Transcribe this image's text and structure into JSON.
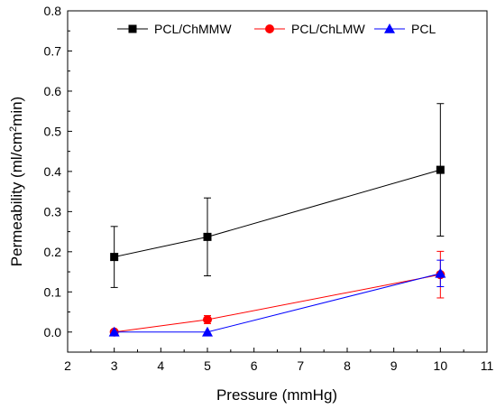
{
  "chart_data": {
    "type": "line",
    "xlabel": "Pressure (mmHg)",
    "ylabel_parts": [
      "Permeability (ml/cm",
      "2",
      "min)"
    ],
    "xlim": [
      2,
      11
    ],
    "ylim": [
      -0.05,
      0.8
    ],
    "x_ticks": [
      2,
      3,
      4,
      5,
      6,
      7,
      8,
      9,
      10,
      11
    ],
    "y_ticks": [
      "0.0",
      "0.1",
      "0.2",
      "0.3",
      "0.4",
      "0.5",
      "0.6",
      "0.7",
      "0.8"
    ],
    "legend_placement": "top",
    "grid": false,
    "series": [
      {
        "name": "PCL/ChMMW",
        "color": "#000000",
        "marker": "square",
        "x": [
          3,
          5,
          10
        ],
        "y": [
          0.187,
          0.237,
          0.404
        ],
        "err": [
          0.076,
          0.097,
          0.165
        ]
      },
      {
        "name": "PCL/ChLMW",
        "color": "#ff0000",
        "marker": "circle",
        "x": [
          3,
          5,
          10
        ],
        "y": [
          0.0,
          0.031,
          0.143
        ],
        "err": [
          0.0,
          0.01,
          0.058
        ]
      },
      {
        "name": "PCL",
        "color": "#0000ff",
        "marker": "triangle",
        "x": [
          3,
          5,
          10
        ],
        "y": [
          0.0,
          0.0,
          0.146
        ],
        "err": [
          0.0,
          0.0,
          0.033
        ]
      }
    ]
  }
}
